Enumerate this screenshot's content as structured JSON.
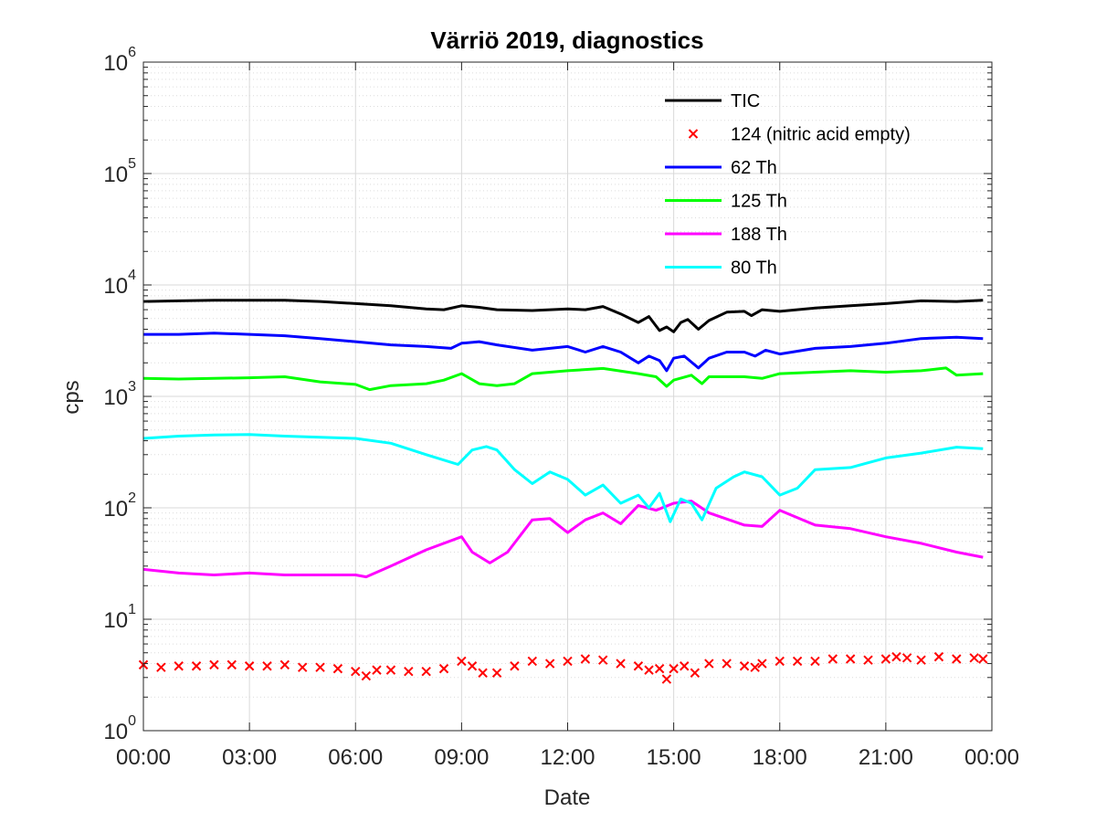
{
  "chart_data": {
    "type": "line",
    "title": "Värriö 2019, diagnostics",
    "xlabel": "Date",
    "ylabel": "cps",
    "yscale": "log",
    "ylim": [
      1,
      1000000
    ],
    "xlim_hours": [
      0,
      23.75
    ],
    "x_ticks": [
      0,
      3,
      6,
      9,
      12,
      15,
      18,
      21,
      24
    ],
    "x_tick_labels": [
      "00:00",
      "03:00",
      "06:00",
      "09:00",
      "12:00",
      "15:00",
      "18:00",
      "21:00",
      "00:00"
    ],
    "y_ticks": [
      {
        "value": 1,
        "base": "10",
        "exp": "0"
      },
      {
        "value": 10,
        "base": "10",
        "exp": "1"
      },
      {
        "value": 100,
        "base": "10",
        "exp": "2"
      },
      {
        "value": 1000,
        "base": "10",
        "exp": "3"
      },
      {
        "value": 10000,
        "base": "10",
        "exp": "4"
      },
      {
        "value": 100000,
        "base": "10",
        "exp": "5"
      },
      {
        "value": 1000000,
        "base": "10",
        "exp": "6"
      }
    ],
    "grid": true,
    "minor_grid": true,
    "legend_position": "top-right",
    "series": [
      {
        "name": "TIC",
        "color": "#000000",
        "style": "line",
        "points": [
          [
            0,
            7100
          ],
          [
            1,
            7200
          ],
          [
            2,
            7300
          ],
          [
            3,
            7300
          ],
          [
            4,
            7300
          ],
          [
            5,
            7100
          ],
          [
            6,
            6800
          ],
          [
            7,
            6500
          ],
          [
            8,
            6100
          ],
          [
            8.5,
            6000
          ],
          [
            9,
            6500
          ],
          [
            9.5,
            6300
          ],
          [
            10,
            6000
          ],
          [
            11,
            5900
          ],
          [
            12,
            6100
          ],
          [
            12.5,
            6000
          ],
          [
            13,
            6400
          ],
          [
            13.5,
            5500
          ],
          [
            14,
            4600
          ],
          [
            14.3,
            5200
          ],
          [
            14.6,
            3900
          ],
          [
            14.8,
            4200
          ],
          [
            15,
            3800
          ],
          [
            15.2,
            4600
          ],
          [
            15.4,
            4900
          ],
          [
            15.7,
            4000
          ],
          [
            16,
            4800
          ],
          [
            16.5,
            5700
          ],
          [
            17,
            5800
          ],
          [
            17.2,
            5300
          ],
          [
            17.5,
            6000
          ],
          [
            18,
            5800
          ],
          [
            19,
            6200
          ],
          [
            20,
            6500
          ],
          [
            21,
            6800
          ],
          [
            22,
            7200
          ],
          [
            23,
            7100
          ],
          [
            23.75,
            7300
          ]
        ]
      },
      {
        "name": "124 (nitric acid empty)",
        "color": "#ff0000",
        "style": "marker",
        "points": [
          [
            0,
            3.9
          ],
          [
            0.5,
            3.7
          ],
          [
            1,
            3.8
          ],
          [
            1.5,
            3.8
          ],
          [
            2,
            3.9
          ],
          [
            2.5,
            3.9
          ],
          [
            3,
            3.8
          ],
          [
            3.5,
            3.8
          ],
          [
            4,
            3.9
          ],
          [
            4.5,
            3.7
          ],
          [
            5,
            3.7
          ],
          [
            5.5,
            3.6
          ],
          [
            6,
            3.4
          ],
          [
            6.3,
            3.1
          ],
          [
            6.6,
            3.5
          ],
          [
            7,
            3.5
          ],
          [
            7.5,
            3.4
          ],
          [
            8,
            3.4
          ],
          [
            8.5,
            3.6
          ],
          [
            9,
            4.2
          ],
          [
            9.3,
            3.8
          ],
          [
            9.6,
            3.3
          ],
          [
            10,
            3.3
          ],
          [
            10.5,
            3.8
          ],
          [
            11,
            4.2
          ],
          [
            11.5,
            4.0
          ],
          [
            12,
            4.2
          ],
          [
            12.5,
            4.4
          ],
          [
            13,
            4.3
          ],
          [
            13.5,
            4.0
          ],
          [
            14,
            3.8
          ],
          [
            14.3,
            3.5
          ],
          [
            14.6,
            3.6
          ],
          [
            14.8,
            2.9
          ],
          [
            15,
            3.6
          ],
          [
            15.3,
            3.8
          ],
          [
            15.6,
            3.3
          ],
          [
            16,
            4.0
          ],
          [
            16.5,
            4.0
          ],
          [
            17,
            3.8
          ],
          [
            17.3,
            3.7
          ],
          [
            17.5,
            4.0
          ],
          [
            18,
            4.2
          ],
          [
            18.5,
            4.2
          ],
          [
            19,
            4.2
          ],
          [
            19.5,
            4.4
          ],
          [
            20,
            4.4
          ],
          [
            20.5,
            4.3
          ],
          [
            21,
            4.4
          ],
          [
            21.3,
            4.6
          ],
          [
            21.6,
            4.5
          ],
          [
            22,
            4.3
          ],
          [
            22.5,
            4.6
          ],
          [
            23,
            4.4
          ],
          [
            23.5,
            4.5
          ],
          [
            23.75,
            4.4
          ]
        ]
      },
      {
        "name": "62 Th",
        "color": "#0000ff",
        "style": "line",
        "points": [
          [
            0,
            3600
          ],
          [
            1,
            3600
          ],
          [
            2,
            3700
          ],
          [
            3,
            3600
          ],
          [
            4,
            3500
          ],
          [
            5,
            3300
          ],
          [
            6,
            3100
          ],
          [
            7,
            2900
          ],
          [
            8,
            2800
          ],
          [
            8.7,
            2700
          ],
          [
            9,
            3000
          ],
          [
            9.5,
            3100
          ],
          [
            10,
            2900
          ],
          [
            11,
            2600
          ],
          [
            12,
            2800
          ],
          [
            12.5,
            2500
          ],
          [
            13,
            2800
          ],
          [
            13.5,
            2500
          ],
          [
            14,
            2000
          ],
          [
            14.3,
            2300
          ],
          [
            14.6,
            2100
          ],
          [
            14.8,
            1700
          ],
          [
            15,
            2200
          ],
          [
            15.3,
            2300
          ],
          [
            15.7,
            1800
          ],
          [
            16,
            2200
          ],
          [
            16.5,
            2500
          ],
          [
            17,
            2500
          ],
          [
            17.3,
            2300
          ],
          [
            17.6,
            2600
          ],
          [
            18,
            2400
          ],
          [
            19,
            2700
          ],
          [
            20,
            2800
          ],
          [
            21,
            3000
          ],
          [
            22,
            3300
          ],
          [
            23,
            3400
          ],
          [
            23.75,
            3300
          ]
        ]
      },
      {
        "name": "125 Th",
        "color": "#00ff00",
        "style": "line",
        "points": [
          [
            0,
            1450
          ],
          [
            1,
            1430
          ],
          [
            2,
            1450
          ],
          [
            3,
            1470
          ],
          [
            4,
            1500
          ],
          [
            5,
            1350
          ],
          [
            6,
            1280
          ],
          [
            6.4,
            1150
          ],
          [
            7,
            1250
          ],
          [
            8,
            1300
          ],
          [
            8.5,
            1400
          ],
          [
            9,
            1600
          ],
          [
            9.5,
            1300
          ],
          [
            10,
            1250
          ],
          [
            10.5,
            1300
          ],
          [
            11,
            1600
          ],
          [
            12,
            1700
          ],
          [
            13,
            1780
          ],
          [
            14,
            1600
          ],
          [
            14.5,
            1500
          ],
          [
            14.8,
            1230
          ],
          [
            15,
            1400
          ],
          [
            15.5,
            1550
          ],
          [
            15.8,
            1300
          ],
          [
            16,
            1500
          ],
          [
            17,
            1500
          ],
          [
            17.5,
            1450
          ],
          [
            18,
            1600
          ],
          [
            19,
            1650
          ],
          [
            20,
            1700
          ],
          [
            21,
            1650
          ],
          [
            22,
            1700
          ],
          [
            22.7,
            1800
          ],
          [
            23,
            1550
          ],
          [
            23.75,
            1600
          ]
        ]
      },
      {
        "name": "188 Th",
        "color": "#ff00ff",
        "style": "line",
        "points": [
          [
            0,
            28
          ],
          [
            1,
            26
          ],
          [
            2,
            25
          ],
          [
            3,
            26
          ],
          [
            4,
            25
          ],
          [
            5,
            25
          ],
          [
            6,
            25
          ],
          [
            6.3,
            24
          ],
          [
            7,
            30
          ],
          [
            8,
            42
          ],
          [
            9,
            55
          ],
          [
            9.3,
            40
          ],
          [
            9.8,
            32
          ],
          [
            10.3,
            40
          ],
          [
            11,
            78
          ],
          [
            11.5,
            80
          ],
          [
            12,
            60
          ],
          [
            12.5,
            78
          ],
          [
            13,
            90
          ],
          [
            13.5,
            72
          ],
          [
            14,
            105
          ],
          [
            14.5,
            95
          ],
          [
            15,
            110
          ],
          [
            15.5,
            115
          ],
          [
            16,
            90
          ],
          [
            17,
            70
          ],
          [
            17.5,
            68
          ],
          [
            18,
            95
          ],
          [
            19,
            70
          ],
          [
            20,
            65
          ],
          [
            21,
            55
          ],
          [
            22,
            48
          ],
          [
            23,
            40
          ],
          [
            23.75,
            36
          ]
        ]
      },
      {
        "name": "80 Th",
        "color": "#00ffff",
        "style": "line",
        "points": [
          [
            0,
            420
          ],
          [
            1,
            440
          ],
          [
            2,
            450
          ],
          [
            3,
            455
          ],
          [
            4,
            440
          ],
          [
            5,
            430
          ],
          [
            6,
            420
          ],
          [
            7,
            380
          ],
          [
            8,
            300
          ],
          [
            8.9,
            245
          ],
          [
            9.3,
            330
          ],
          [
            9.7,
            355
          ],
          [
            10,
            330
          ],
          [
            10.5,
            220
          ],
          [
            11,
            165
          ],
          [
            11.5,
            210
          ],
          [
            12,
            180
          ],
          [
            12.5,
            130
          ],
          [
            13,
            160
          ],
          [
            13.5,
            110
          ],
          [
            14,
            130
          ],
          [
            14.3,
            100
          ],
          [
            14.6,
            135
          ],
          [
            14.9,
            75
          ],
          [
            15.2,
            120
          ],
          [
            15.5,
            110
          ],
          [
            15.8,
            78
          ],
          [
            16.2,
            150
          ],
          [
            16.7,
            190
          ],
          [
            17,
            210
          ],
          [
            17.5,
            190
          ],
          [
            18,
            130
          ],
          [
            18.5,
            150
          ],
          [
            19,
            220
          ],
          [
            20,
            230
          ],
          [
            21,
            280
          ],
          [
            22,
            310
          ],
          [
            23,
            350
          ],
          [
            23.75,
            340
          ]
        ]
      }
    ]
  }
}
